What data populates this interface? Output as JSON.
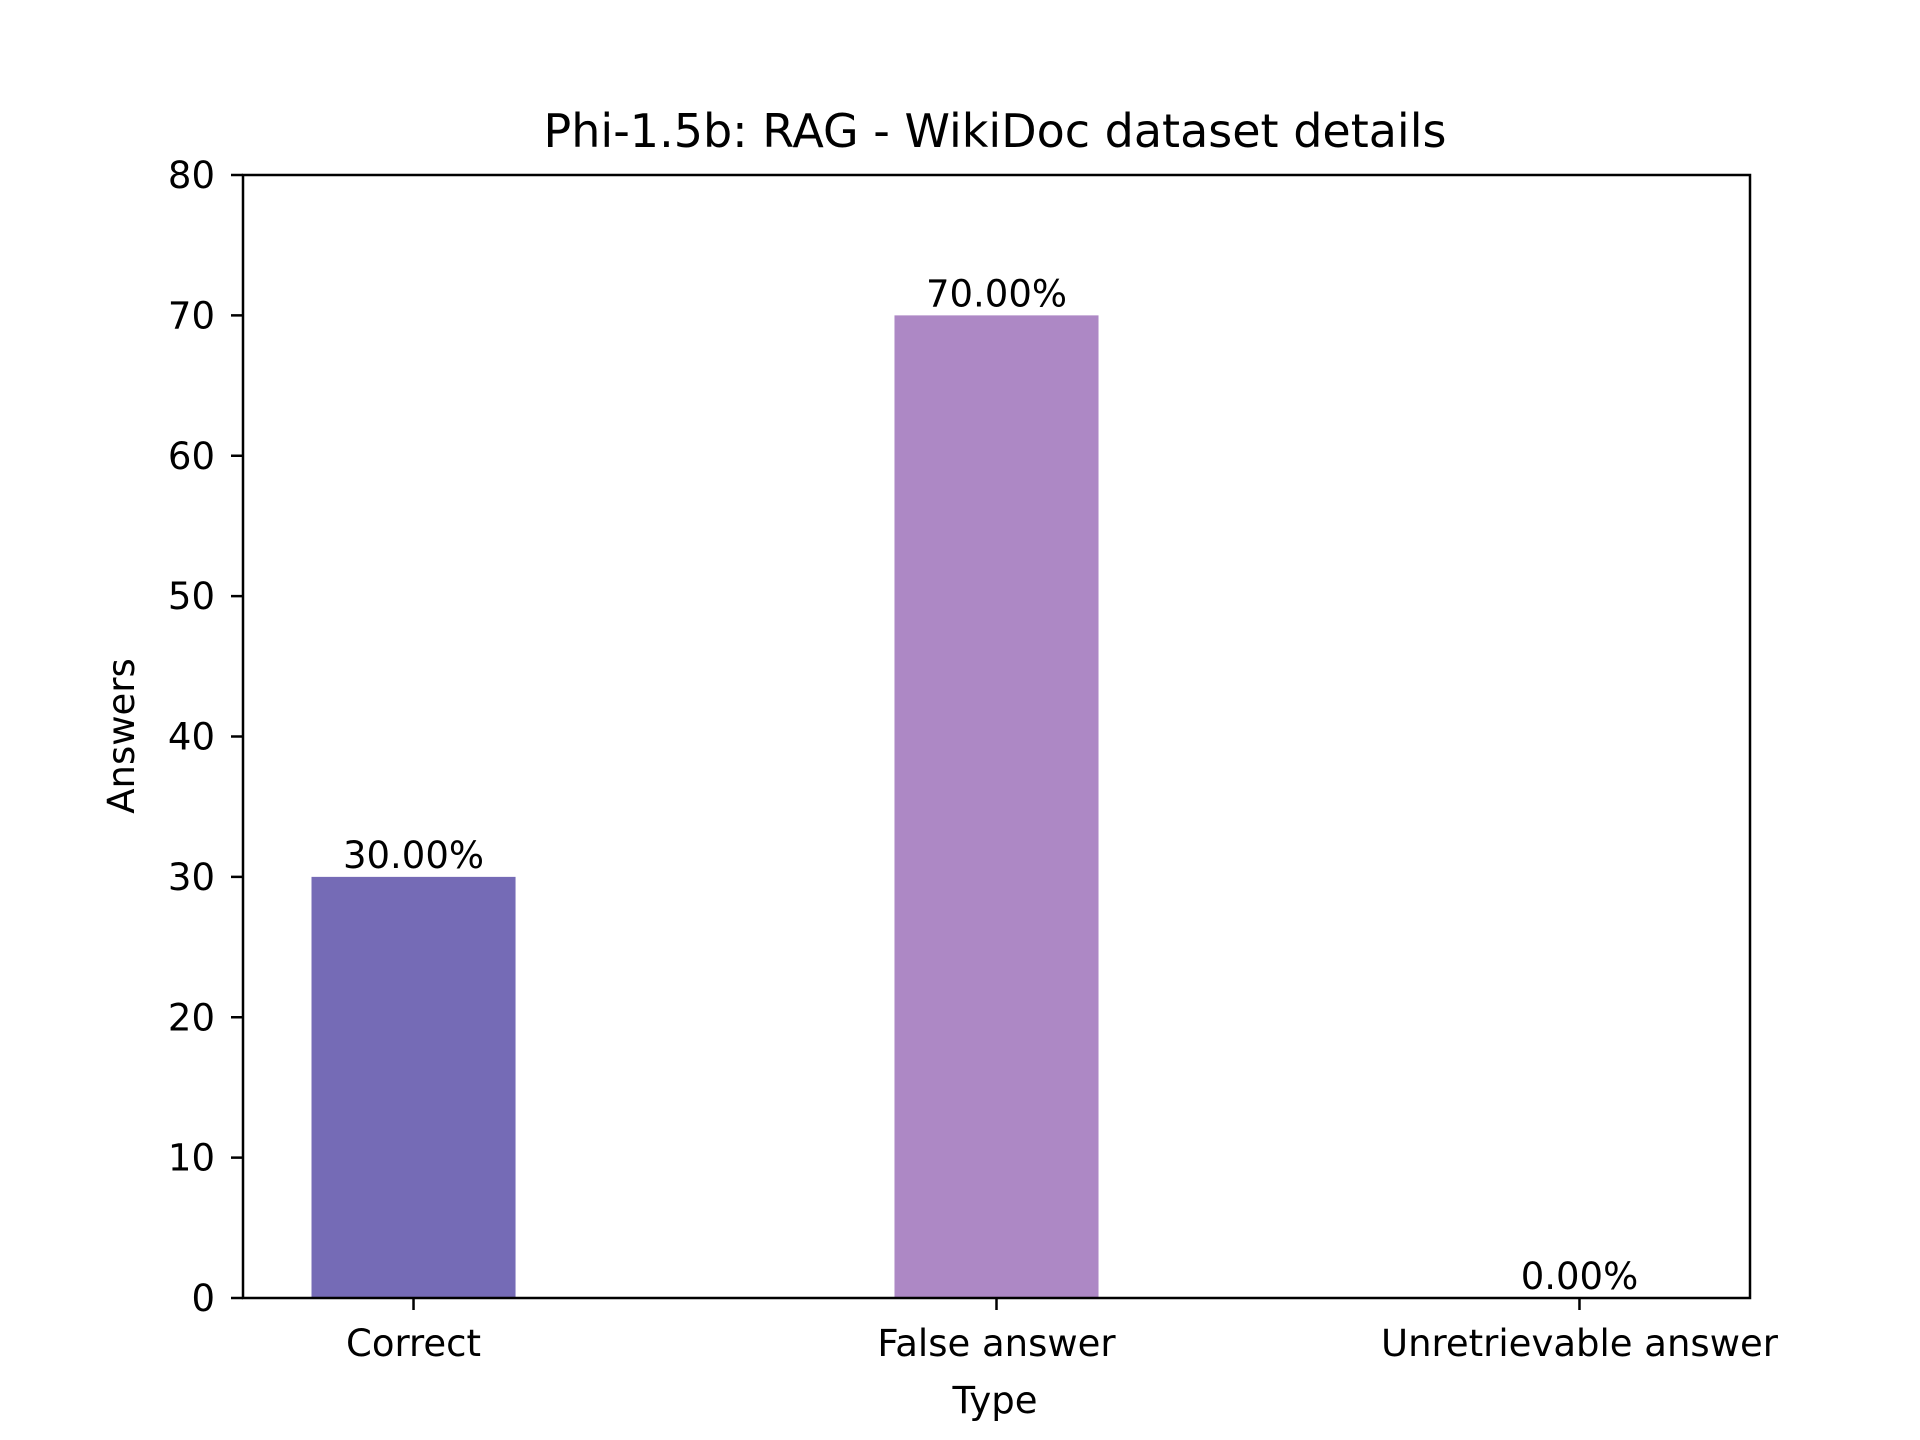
{
  "chart_data": {
    "type": "bar",
    "title": "Phi-1.5b: RAG - WikiDoc dataset details",
    "xlabel": "Type",
    "ylabel": "Answers",
    "categories": [
      "Correct",
      "False answer",
      "Unretrievable answer"
    ],
    "values": [
      30,
      70,
      0
    ],
    "data_labels": [
      "30.00%",
      "70.00%",
      "0.00%"
    ],
    "bar_colors": [
      "#756bb6",
      "#ad88c5",
      "#756bb6"
    ],
    "ylim": [
      0,
      80
    ],
    "yticks": [
      0,
      10,
      20,
      30,
      40,
      50,
      60,
      70,
      80
    ],
    "grid": false,
    "legend": "none"
  }
}
